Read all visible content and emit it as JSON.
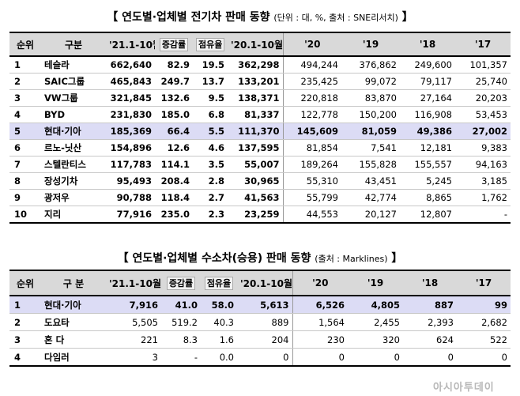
{
  "ev": {
    "title_open": "【",
    "title_main": "연도별·업체별 전기차 판매 동향",
    "title_note": "(단위 : 대, %, 출처 : SNE리서치)",
    "title_close": "】",
    "headers": [
      "순위",
      "구분",
      "'21.1-10월",
      "증감률",
      "점유율",
      "'20.1-10월",
      "'20",
      "'19",
      "'18",
      "'17"
    ],
    "rows": [
      {
        "rank": "1",
        "name": "테슬라",
        "v21": "662,640",
        "chg": "82.9",
        "share": "19.5",
        "v20ytd": "362,298",
        "y20": "494,244",
        "y19": "376,862",
        "y18": "249,600",
        "y17": "101,357"
      },
      {
        "rank": "2",
        "name": "SAIC그룹",
        "v21": "465,843",
        "chg": "249.7",
        "share": "13.7",
        "v20ytd": "133,201",
        "y20": "235,425",
        "y19": "99,072",
        "y18": "79,117",
        "y17": "25,740"
      },
      {
        "rank": "3",
        "name": "VW그룹",
        "v21": "321,845",
        "chg": "132.6",
        "share": "9.5",
        "v20ytd": "138,371",
        "y20": "220,818",
        "y19": "83,870",
        "y18": "27,164",
        "y17": "20,203"
      },
      {
        "rank": "4",
        "name": "BYD",
        "v21": "231,830",
        "chg": "185.0",
        "share": "6.8",
        "v20ytd": "81,337",
        "y20": "122,778",
        "y19": "150,200",
        "y18": "116,908",
        "y17": "53,453"
      },
      {
        "rank": "5",
        "name": "현대·기아",
        "v21": "185,369",
        "chg": "66.4",
        "share": "5.5",
        "v20ytd": "111,370",
        "y20": "145,609",
        "y19": "81,059",
        "y18": "49,386",
        "y17": "27,002"
      },
      {
        "rank": "6",
        "name": "르노-닛산",
        "v21": "154,896",
        "chg": "12.6",
        "share": "4.6",
        "v20ytd": "137,595",
        "y20": "81,854",
        "y19": "7,541",
        "y18": "12,181",
        "y17": "9,383"
      },
      {
        "rank": "7",
        "name": "스텔란티스",
        "v21": "117,783",
        "chg": "114.1",
        "share": "3.5",
        "v20ytd": "55,007",
        "y20": "189,264",
        "y19": "155,828",
        "y18": "155,557",
        "y17": "94,163"
      },
      {
        "rank": "8",
        "name": "장성기차",
        "v21": "95,493",
        "chg": "208.4",
        "share": "2.8",
        "v20ytd": "30,965",
        "y20": "55,310",
        "y19": "43,451",
        "y18": "5,245",
        "y17": "3,185"
      },
      {
        "rank": "9",
        "name": "광저우",
        "v21": "90,788",
        "chg": "118.4",
        "share": "2.7",
        "v20ytd": "41,563",
        "y20": "55,799",
        "y19": "42,774",
        "y18": "8,865",
        "y17": "1,762"
      },
      {
        "rank": "10",
        "name": "지리",
        "v21": "77,916",
        "chg": "235.0",
        "share": "2.3",
        "v20ytd": "23,259",
        "y20": "44,553",
        "y19": "20,127",
        "y18": "12,807",
        "y17": "-"
      }
    ]
  },
  "fc": {
    "title_open": "【",
    "title_main": "연도별·업체별 수소차(승용) 판매 동향",
    "title_note": "(출처 : Marklines)",
    "title_close": "】",
    "headers": [
      "순위",
      "구 분",
      "'21.1-10월",
      "증감률",
      "점유율",
      "'20.1-10월",
      "'20",
      "'19",
      "'18",
      "'17"
    ],
    "rows": [
      {
        "rank": "1",
        "name": "현대·기아",
        "v21": "7,916",
        "chg": "41.0",
        "share": "58.0",
        "v20ytd": "5,613",
        "y20": "6,526",
        "y19": "4,805",
        "y18": "887",
        "y17": "99"
      },
      {
        "rank": "2",
        "name": "도요타",
        "v21": "5,505",
        "chg": "519.2",
        "share": "40.3",
        "v20ytd": "889",
        "y20": "1,564",
        "y19": "2,455",
        "y18": "2,393",
        "y17": "2,682"
      },
      {
        "rank": "3",
        "name": "혼 다",
        "v21": "221",
        "chg": "8.3",
        "share": "1.6",
        "v20ytd": "204",
        "y20": "230",
        "y19": "320",
        "y18": "624",
        "y17": "522"
      },
      {
        "rank": "4",
        "name": "다임러",
        "v21": "3",
        "chg": "-",
        "share": "0.0",
        "v20ytd": "0",
        "y20": "0",
        "y19": "0",
        "y18": "0",
        "y17": "0"
      }
    ]
  },
  "watermark": "아시아투데이"
}
